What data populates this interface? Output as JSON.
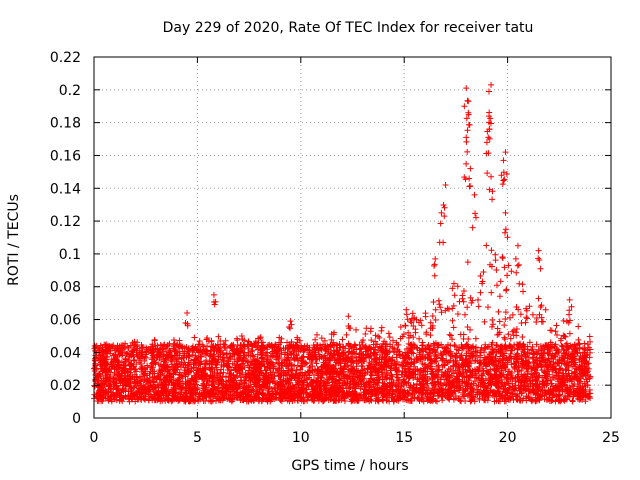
{
  "chart_data": {
    "type": "scatter",
    "title": "Day 229 of 2020, Rate Of TEC Index for receiver tatu",
    "xlabel": "GPS time / hours",
    "ylabel": "ROTI / TECUs",
    "xlim": [
      0,
      25
    ],
    "ylim": [
      0,
      0.22
    ],
    "xticks": [
      0,
      5,
      10,
      15,
      20,
      25
    ],
    "yticks": [
      0,
      0.02,
      0.04,
      0.06,
      0.08,
      0.1,
      0.12,
      0.14,
      0.16,
      0.18,
      0.2,
      0.22
    ],
    "xtick_labels": [
      "0",
      "5",
      "10",
      "15",
      "20",
      "25"
    ],
    "ytick_labels": [
      "0",
      "0.02",
      "0.04",
      "0.06",
      "0.08",
      "0.1",
      "0.12",
      "0.14",
      "0.16",
      "0.18",
      "0.2",
      "0.22"
    ],
    "grid": true,
    "marker": "+",
    "color": "#ff0000",
    "series": [
      {
        "name": "ROTI",
        "x_range": [
          0,
          24
        ],
        "baseline_min": 0.01,
        "baseline_max": 0.045,
        "profile": [
          {
            "x": 0,
            "typ_min": 0.012,
            "typ_max": 0.045
          },
          {
            "x": 5,
            "typ_min": 0.01,
            "typ_max": 0.05
          },
          {
            "x": 10,
            "typ_min": 0.012,
            "typ_max": 0.05
          },
          {
            "x": 15,
            "typ_min": 0.015,
            "typ_max": 0.06
          },
          {
            "x": 17,
            "typ_min": 0.015,
            "typ_max": 0.08
          },
          {
            "x": 19,
            "typ_min": 0.015,
            "typ_max": 0.11
          },
          {
            "x": 21,
            "typ_min": 0.015,
            "typ_max": 0.08
          },
          {
            "x": 24,
            "typ_min": 0.012,
            "typ_max": 0.05
          }
        ],
        "peaks": [
          {
            "x": 4.5,
            "y": 0.064
          },
          {
            "x": 5.8,
            "y": 0.075
          },
          {
            "x": 9.5,
            "y": 0.059
          },
          {
            "x": 12.3,
            "y": 0.062
          },
          {
            "x": 15.1,
            "y": 0.066
          },
          {
            "x": 16.5,
            "y": 0.097
          },
          {
            "x": 16.8,
            "y": 0.125
          },
          {
            "x": 17.0,
            "y": 0.142
          },
          {
            "x": 18.0,
            "y": 0.201
          },
          {
            "x": 18.0,
            "y": 0.171
          },
          {
            "x": 18.1,
            "y": 0.186
          },
          {
            "x": 18.1,
            "y": 0.193
          },
          {
            "x": 18.2,
            "y": 0.152
          },
          {
            "x": 18.4,
            "y": 0.136
          },
          {
            "x": 19.1,
            "y": 0.199
          },
          {
            "x": 19.2,
            "y": 0.203
          },
          {
            "x": 19.1,
            "y": 0.184
          },
          {
            "x": 19.0,
            "y": 0.168
          },
          {
            "x": 19.2,
            "y": 0.147
          },
          {
            "x": 19.9,
            "y": 0.162
          },
          {
            "x": 19.8,
            "y": 0.157
          },
          {
            "x": 19.9,
            "y": 0.125
          },
          {
            "x": 20.5,
            "y": 0.105
          },
          {
            "x": 21.5,
            "y": 0.102
          },
          {
            "x": 23.0,
            "y": 0.072
          }
        ]
      }
    ]
  }
}
